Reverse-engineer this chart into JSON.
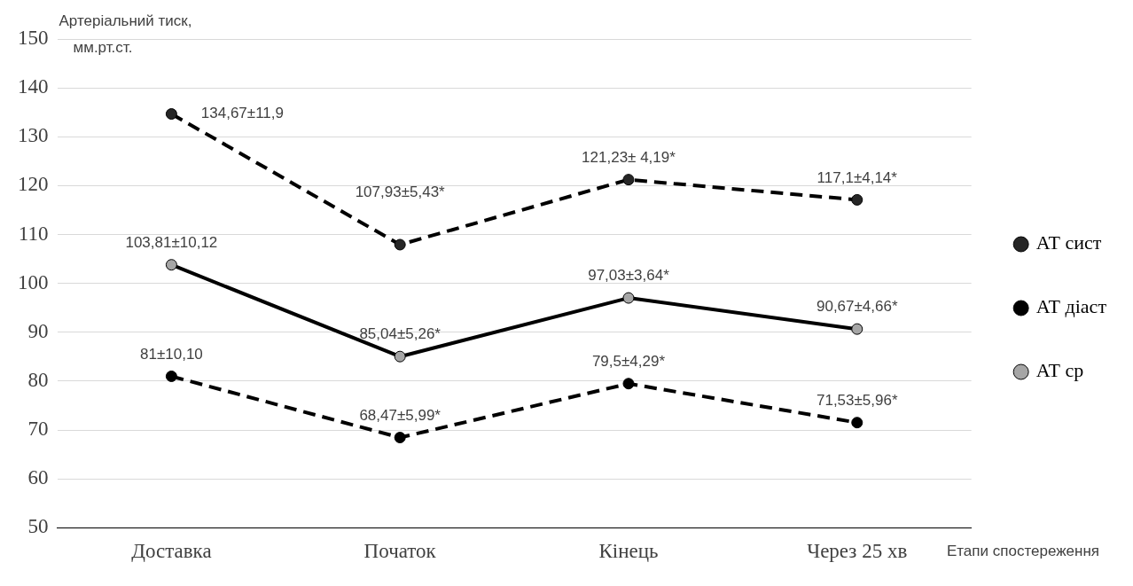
{
  "chart_data": {
    "type": "line",
    "ylabel": "Артеріальний тиск, мм.рт.ст.",
    "xlabel": "Етапи спостереження",
    "categories": [
      "Доставка",
      "Початок",
      "Кінець",
      "Через 25 хв"
    ],
    "series": [
      {
        "name": "АТ сист",
        "color": "#262626",
        "line_style": "dashed",
        "values": [
          134.67,
          107.93,
          121.23,
          117.1
        ],
        "value_labels": [
          "134,67±11,9",
          "107,93±5,43*",
          "121,23± 4,19*",
          "117,1±4,14*"
        ]
      },
      {
        "name": "АТ діаст",
        "color": "#000000",
        "line_style": "dashed",
        "values": [
          81,
          68.47,
          79.5,
          71.53
        ],
        "value_labels": [
          "81±10,10",
          "68,47±5,99*",
          "79,5±4,29*",
          "71,53±5,96*"
        ]
      },
      {
        "name": "АТ ср",
        "color": "#a6a6a6",
        "line_style": "solid",
        "values": [
          103.81,
          85.04,
          97.03,
          90.67
        ],
        "value_labels": [
          "103,81±10,12",
          "85,04±5,26*",
          "97,03±3,64*",
          "90,67±4,66*"
        ]
      }
    ],
    "ylim": [
      50,
      150
    ],
    "yticks": [
      50,
      60,
      70,
      80,
      90,
      100,
      110,
      120,
      130,
      140,
      150
    ],
    "grid": "y",
    "legend": "right",
    "marker": "circle"
  }
}
